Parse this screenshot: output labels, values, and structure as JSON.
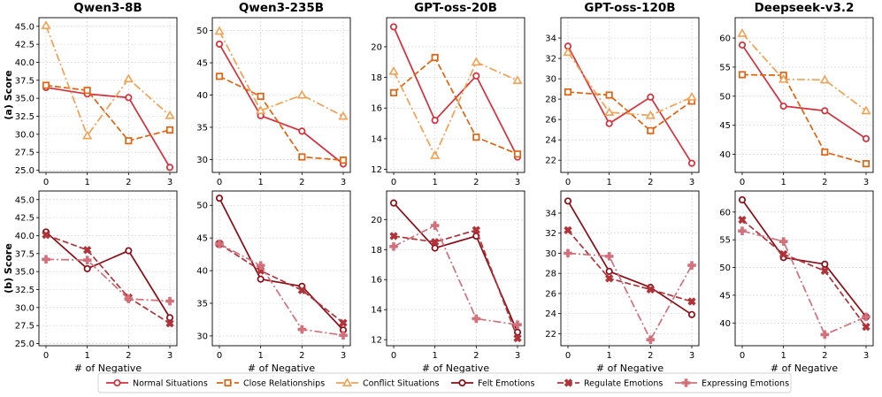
{
  "chart_data": {
    "type": "line",
    "x": [
      0,
      1,
      2,
      3
    ],
    "xticklabels": [
      "0",
      "1",
      "2",
      "3"
    ],
    "xlabel": "# of Negative",
    "row_labels": [
      "(a) Score",
      "(b) Score"
    ],
    "models": [
      "Qwen3-8B",
      "Qwen3-235B",
      "GPT-oss-20B",
      "GPT-oss-120B",
      "Deepseek-v3.2"
    ],
    "legend": {
      "placement": "bottom-center",
      "entries": [
        "Normal Situations",
        "Close Relationships",
        "Conflict Situations",
        "Felt Emotions",
        "Regulate Emotions",
        "Expressing Emotions"
      ]
    },
    "styles": {
      "Normal Situations": {
        "color": "#d62f3a",
        "dash": "solid",
        "marker": "circle"
      },
      "Close Relationships": {
        "color": "#e2620e",
        "dash": "dashed",
        "marker": "square"
      },
      "Conflict Situations": {
        "color": "#f3a052",
        "dash": "dashdot",
        "marker": "triangle"
      },
      "Felt Emotions": {
        "color": "#8b0c14",
        "dash": "solid",
        "marker": "circle"
      },
      "Regulate Emotions": {
        "color": "#b1333a",
        "dash": "dashed",
        "marker": "x"
      },
      "Expressing Emotions": {
        "color": "#d2707b",
        "dash": "dashdot",
        "marker": "plus"
      }
    },
    "panels": [
      {
        "row": 0,
        "col": 0,
        "title": "Qwen3-8B",
        "ylim": [
          24.7,
          46.2
        ],
        "yticks": [
          "25.0",
          "27.5",
          "30.0",
          "32.5",
          "35.0",
          "37.5",
          "40.0",
          "42.5",
          "45.0"
        ],
        "series": [
          {
            "name": "Normal Situations",
            "values": [
              36.5,
              35.6,
              35.1,
              25.4
            ]
          },
          {
            "name": "Close Relationships",
            "values": [
              36.8,
              36.1,
              29.1,
              30.6
            ]
          },
          {
            "name": "Conflict Situations",
            "values": [
              45.1,
              29.8,
              37.7,
              32.6
            ]
          }
        ]
      },
      {
        "row": 0,
        "col": 1,
        "title": "Qwen3-235B",
        "ylim": [
          28.0,
          52.0
        ],
        "yticks": [
          "30",
          "35",
          "40",
          "45",
          "50"
        ],
        "series": [
          {
            "name": "Normal Situations",
            "values": [
              47.9,
              36.8,
              34.4,
              29.3
            ]
          },
          {
            "name": "Close Relationships",
            "values": [
              42.9,
              39.8,
              30.4,
              29.9
            ]
          },
          {
            "name": "Conflict Situations",
            "values": [
              49.9,
              37.6,
              40.0,
              36.7
            ]
          }
        ]
      },
      {
        "row": 0,
        "col": 2,
        "title": "GPT-oss-20B",
        "ylim": [
          11.8,
          21.9
        ],
        "yticks": [
          "12",
          "14",
          "16",
          "18",
          "20"
        ],
        "series": [
          {
            "name": "Normal Situations",
            "values": [
              21.3,
              15.2,
              18.1,
              12.8
            ]
          },
          {
            "name": "Close Relationships",
            "values": [
              17.0,
              19.3,
              14.1,
              13.0
            ]
          },
          {
            "name": "Conflict Situations",
            "values": [
              18.4,
              12.9,
              19.0,
              17.8
            ]
          }
        ]
      },
      {
        "row": 0,
        "col": 3,
        "title": "GPT-oss-120B",
        "ylim": [
          20.8,
          36.0
        ],
        "yticks": [
          "22",
          "24",
          "26",
          "28",
          "30",
          "32",
          "34"
        ],
        "series": [
          {
            "name": "Normal Situations",
            "values": [
              33.2,
              25.6,
              28.2,
              21.7
            ]
          },
          {
            "name": "Close Relationships",
            "values": [
              28.7,
              28.4,
              24.9,
              27.8
            ]
          },
          {
            "name": "Conflict Situations",
            "values": [
              32.6,
              26.7,
              26.4,
              28.2
            ]
          }
        ]
      },
      {
        "row": 0,
        "col": 4,
        "title": "Deepseek-v3.2",
        "ylim": [
          36.9,
          63.5
        ],
        "yticks": [
          "40",
          "45",
          "50",
          "55",
          "60"
        ],
        "series": [
          {
            "name": "Normal Situations",
            "values": [
              58.8,
              48.3,
              47.5,
              42.7
            ]
          },
          {
            "name": "Close Relationships",
            "values": [
              53.7,
              53.6,
              40.4,
              38.4
            ]
          },
          {
            "name": "Conflict Situations",
            "values": [
              60.8,
              52.9,
              52.8,
              47.5
            ]
          }
        ]
      },
      {
        "row": 1,
        "col": 0,
        "title": "",
        "ylim": [
          24.7,
          46.2
        ],
        "yticks": [
          "25.0",
          "27.5",
          "30.0",
          "32.5",
          "35.0",
          "37.5",
          "40.0",
          "42.5",
          "45.0"
        ],
        "series": [
          {
            "name": "Felt Emotions",
            "values": [
              40.5,
              35.4,
              37.9,
              28.6
            ]
          },
          {
            "name": "Regulate Emotions",
            "values": [
              40.1,
              38.0,
              31.4,
              27.8
            ]
          },
          {
            "name": "Expressing Emotions",
            "values": [
              36.7,
              36.6,
              31.2,
              30.9
            ]
          }
        ]
      },
      {
        "row": 1,
        "col": 1,
        "title": "",
        "ylim": [
          28.5,
          52.2
        ],
        "yticks": [
          "30",
          "35",
          "40",
          "45",
          "50"
        ],
        "series": [
          {
            "name": "Felt Emotions",
            "values": [
              51.1,
              38.7,
              37.6,
              30.9
            ]
          },
          {
            "name": "Regulate Emotions",
            "values": [
              44.1,
              40.0,
              37.0,
              32.0
            ]
          },
          {
            "name": "Expressing Emotions",
            "values": [
              44.1,
              40.8,
              31.0,
              30.1
            ]
          }
        ]
      },
      {
        "row": 1,
        "col": 2,
        "title": "",
        "ylim": [
          11.6,
          21.9
        ],
        "yticks": [
          "12",
          "14",
          "16",
          "18",
          "20"
        ],
        "series": [
          {
            "name": "Felt Emotions",
            "values": [
              21.1,
              18.1,
              18.9,
              12.5
            ]
          },
          {
            "name": "Regulate Emotions",
            "values": [
              18.9,
              18.5,
              19.3,
              12.1
            ]
          },
          {
            "name": "Expressing Emotions",
            "values": [
              18.2,
              19.6,
              13.4,
              13.0
            ]
          }
        ]
      },
      {
        "row": 1,
        "col": 3,
        "title": "",
        "ylim": [
          20.8,
          36.2
        ],
        "yticks": [
          "22",
          "24",
          "26",
          "28",
          "30",
          "32",
          "34"
        ],
        "series": [
          {
            "name": "Felt Emotions",
            "values": [
              35.2,
              28.2,
              26.6,
              23.9
            ]
          },
          {
            "name": "Regulate Emotions",
            "values": [
              32.3,
              27.5,
              26.4,
              25.2
            ]
          },
          {
            "name": "Expressing Emotions",
            "values": [
              30.0,
              29.7,
              21.4,
              28.8
            ]
          }
        ]
      },
      {
        "row": 1,
        "col": 4,
        "title": "",
        "ylim": [
          35.9,
          63.8
        ],
        "yticks": [
          "40",
          "45",
          "50",
          "55",
          "60"
        ],
        "series": [
          {
            "name": "Felt Emotions",
            "values": [
              62.2,
              51.8,
              50.6,
              41.1
            ]
          },
          {
            "name": "Regulate Emotions",
            "values": [
              58.6,
              52.4,
              49.4,
              39.3
            ]
          },
          {
            "name": "Expressing Emotions",
            "values": [
              56.6,
              54.7,
              37.9,
              41.1
            ]
          }
        ]
      }
    ]
  }
}
